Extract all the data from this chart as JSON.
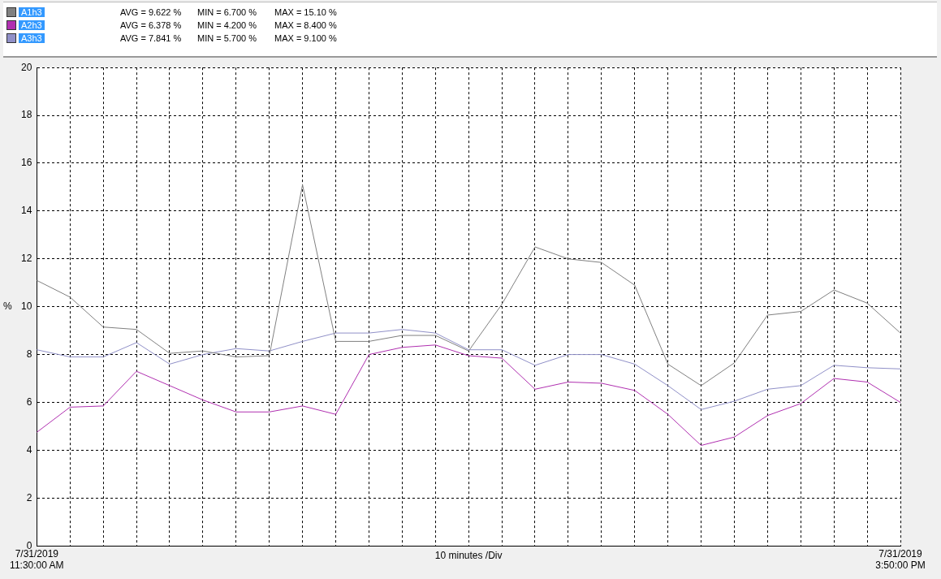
{
  "chart_data": {
    "type": "line",
    "xlabel": "10 minutes /Div",
    "ylabel": "%",
    "legend": "top left",
    "grid": true,
    "marker": "none",
    "line_style": "solid",
    "annotations": [
      "AVG = 9.622 %",
      "MIN = 6.700 %",
      "MAX = 15.10 %",
      "AVG = 6.378 %",
      "MIN = 4.200 %",
      "MAX = 8.400 %",
      "AVG = 7.841 %",
      "MIN = 5.700 %",
      "MAX = 9.100 %"
    ],
    "categories": [
      "7/31/2019\n11:30:00 AM",
      null,
      null,
      null,
      null,
      null,
      null,
      null,
      null,
      null,
      null,
      null,
      null,
      null,
      null,
      null,
      null,
      null,
      null,
      null,
      null,
      null,
      null,
      null,
      null,
      null,
      "7/31/2019\n3:50:00 PM"
    ],
    "ylim": [
      0,
      20
    ],
    "yticks": [
      0,
      2,
      4,
      6,
      8,
      10,
      12,
      14,
      16,
      18,
      20
    ],
    "series": [
      {
        "name": "A1h3",
        "color": "#808080",
        "values": [
          11.1,
          10.4,
          9.15,
          9.05,
          8.05,
          8.15,
          7.9,
          7.95,
          15.1,
          8.55,
          8.55,
          8.8,
          8.8,
          8.15,
          10.1,
          12.5,
          12.0,
          11.85,
          10.9,
          7.6,
          6.7,
          7.65,
          9.65,
          9.8,
          10.7,
          10.15,
          8.9
        ]
      },
      {
        "name": "A2h3",
        "color": "#b030b0",
        "values": [
          4.75,
          5.8,
          5.85,
          7.3,
          6.7,
          6.1,
          5.6,
          5.6,
          5.85,
          5.5,
          8.0,
          8.3,
          8.4,
          7.95,
          7.85,
          6.55,
          6.85,
          6.8,
          6.5,
          5.5,
          4.2,
          4.55,
          5.45,
          5.95,
          7.0,
          6.85,
          6.0
        ]
      },
      {
        "name": "A3h3",
        "color": "#9090c8",
        "values": [
          8.2,
          7.9,
          7.9,
          8.5,
          7.6,
          8.0,
          8.25,
          8.15,
          8.55,
          8.9,
          8.9,
          9.05,
          8.9,
          8.2,
          8.2,
          7.55,
          8.0,
          8.0,
          7.6,
          6.7,
          5.7,
          6.05,
          6.55,
          6.7,
          7.55,
          7.45,
          7.4
        ]
      }
    ]
  }
}
